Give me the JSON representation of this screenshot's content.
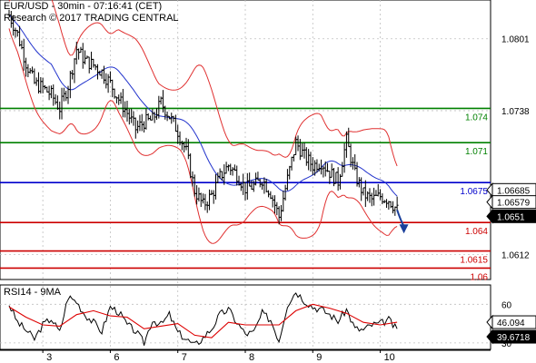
{
  "header": {
    "instrument_line": "EUR/USD - 30min - 07:16:41 (CET)",
    "copyright_line": "Research © 2017 TRADING CENTRAL"
  },
  "colors": {
    "support": "#cc0000",
    "resistance": "#008000",
    "pivot": "#0000cc",
    "price": "#000000",
    "bollinger": "#e03030",
    "moving_average": "#2233cc",
    "rsi_line": "#000000",
    "rsi_ma": "#dd0000",
    "arrow": "#1a3f9a",
    "current_price_box": "#000000"
  },
  "chart_data": [
    {
      "type": "candlestick",
      "title": "EUR/USD - 30min - 07:16:41 (CET)",
      "y_axis": {
        "range": [
          1.059,
          1.0835
        ],
        "ticks": [
          {
            "label": "1.0801",
            "value": 1.0801
          },
          {
            "label": "1.0738",
            "value": 1.0738
          },
          {
            "label": "1.0612",
            "value": 1.0612
          }
        ]
      },
      "x_axis": {
        "range": [
          0,
          14
        ],
        "ticks": [
          {
            "label": "3",
            "x": 1
          },
          {
            "label": "6",
            "x": 3
          },
          {
            "label": "7",
            "x": 5
          },
          {
            "label": "8",
            "x": 7
          },
          {
            "label": "9",
            "x": 9
          },
          {
            "label": "10",
            "x": 11
          }
        ]
      },
      "grid": true,
      "levels": [
        {
          "label": "1.074",
          "value": 1.074,
          "kind": "resistance"
        },
        {
          "label": "1.071",
          "value": 1.071,
          "kind": "resistance"
        },
        {
          "label": "1.0675",
          "value": 1.0675,
          "kind": "pivot"
        },
        {
          "label": "1.064",
          "value": 1.064,
          "kind": "support"
        },
        {
          "label": "1.0615",
          "value": 1.0615,
          "kind": "support"
        },
        {
          "label": "1.06",
          "value": 1.06,
          "kind": "support"
        }
      ],
      "price_tags": [
        {
          "label": "1.06685",
          "value": 1.06685,
          "style": "outlined"
        },
        {
          "label": "1.06579",
          "value": 1.06579,
          "style": "outlined"
        },
        {
          "label": "1.0651",
          "value": 1.0651,
          "style": "filled"
        }
      ],
      "close_series": {
        "x": [
          0.0,
          0.25,
          0.5,
          0.75,
          1.0,
          1.25,
          1.5,
          1.75,
          2.0,
          2.25,
          2.5,
          2.75,
          3.0,
          3.25,
          3.5,
          3.75,
          4.0,
          4.25,
          4.5,
          4.75,
          5.0,
          5.25,
          5.5,
          5.75,
          6.0,
          6.25,
          6.5,
          6.75,
          7.0,
          7.25,
          7.5,
          7.75,
          8.0,
          8.25,
          8.5,
          8.75,
          9.0,
          9.25,
          9.5,
          9.75,
          10.0,
          10.25,
          10.5,
          10.75,
          11.0,
          11.25,
          11.5
        ],
        "y": [
          1.0822,
          1.0805,
          1.078,
          1.0762,
          1.0758,
          1.0752,
          1.074,
          1.076,
          1.0792,
          1.0782,
          1.0778,
          1.0772,
          1.0762,
          1.0748,
          1.0736,
          1.0722,
          1.0728,
          1.073,
          1.0745,
          1.0733,
          1.072,
          1.0702,
          1.0668,
          1.0655,
          1.0664,
          1.068,
          1.069,
          1.0682,
          1.067,
          1.0672,
          1.0678,
          1.0666,
          1.0645,
          1.0678,
          1.071,
          1.0698,
          1.069,
          1.0693,
          1.0684,
          1.0676,
          1.0712,
          1.0682,
          1.0665,
          1.066,
          1.0663,
          1.066,
          1.0651
        ]
      },
      "projection_arrow": {
        "from": [
          11.5,
          1.0651
        ],
        "to": [
          11.7,
          1.0632
        ]
      }
    },
    {
      "type": "line",
      "title": "RSI14 - 9MA",
      "y_axis": {
        "range": [
          25,
          75
        ],
        "ticks": [
          {
            "label": "30",
            "value": 30
          },
          {
            "label": "60",
            "value": 60
          }
        ]
      },
      "series": [
        {
          "x": [
            0.0,
            0.25,
            0.5,
            0.75,
            1.0,
            1.25,
            1.5,
            1.75,
            2.0,
            2.25,
            2.5,
            2.75,
            3.0,
            3.25,
            3.5,
            3.75,
            4.0,
            4.25,
            4.5,
            4.75,
            5.0,
            5.25,
            5.5,
            5.75,
            6.0,
            6.25,
            6.5,
            6.75,
            7.0,
            7.25,
            7.5,
            7.75,
            8.0,
            8.25,
            8.5,
            8.75,
            9.0,
            9.25,
            9.5,
            9.75,
            10.0,
            10.25,
            10.5,
            10.75,
            11.0,
            11.25,
            11.5
          ],
          "y": [
            60,
            46,
            40,
            33,
            44,
            49,
            38,
            66,
            62,
            52,
            46,
            39,
            58,
            54,
            44,
            39,
            30,
            48,
            44,
            52,
            38,
            33,
            28,
            34,
            41,
            52,
            56,
            46,
            37,
            38,
            53,
            48,
            32,
            60,
            70,
            63,
            58,
            56,
            52,
            47,
            56,
            41,
            40,
            44,
            45,
            48,
            39.67
          ]
        },
        {
          "x": [
            0.0,
            0.5,
            1.0,
            1.5,
            2.0,
            2.5,
            3.0,
            3.5,
            4.0,
            4.5,
            5.0,
            5.5,
            6.0,
            6.5,
            7.0,
            7.5,
            8.0,
            8.5,
            9.0,
            9.5,
            10.0,
            10.5,
            11.0,
            11.5
          ],
          "y": [
            58,
            50,
            44,
            43,
            52,
            55,
            51,
            50,
            41,
            43,
            45,
            36,
            34,
            46,
            44,
            44,
            44,
            55,
            60,
            57,
            53,
            46,
            44,
            46.09
          ]
        }
      ],
      "value_tags": [
        {
          "label": "46.094",
          "value": 46.094,
          "style": "outlined"
        },
        {
          "label": "39.6718",
          "value": 39.6718,
          "style": "filled"
        }
      ]
    }
  ]
}
